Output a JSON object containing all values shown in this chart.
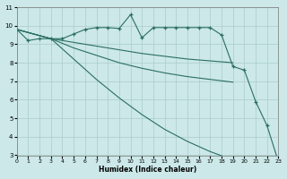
{
  "xlabel": "Humidex (Indice chaleur)",
  "xlim_min": 0,
  "xlim_max": 23,
  "ylim_min": 3,
  "ylim_max": 11,
  "yticks": [
    3,
    4,
    5,
    6,
    7,
    8,
    9,
    10,
    11
  ],
  "xticks": [
    0,
    1,
    2,
    3,
    4,
    5,
    6,
    7,
    8,
    9,
    10,
    11,
    12,
    13,
    14,
    15,
    16,
    17,
    18,
    19,
    20,
    21,
    22,
    23
  ],
  "bg_color": "#cce8e8",
  "grid_color": "#aacccc",
  "line_color": "#2a6e62",
  "series": [
    {
      "x": [
        0,
        1,
        2,
        3,
        4,
        5,
        6,
        7,
        8,
        9,
        10,
        11,
        12,
        13,
        14,
        15,
        16,
        17,
        18,
        19,
        20,
        21,
        22,
        23
      ],
      "y": [
        9.8,
        9.2,
        9.3,
        9.3,
        9.3,
        9.55,
        9.8,
        9.9,
        9.9,
        9.85,
        10.6,
        9.35,
        9.9,
        9.9,
        9.9,
        9.9,
        9.9,
        9.9,
        9.5,
        7.8,
        7.6,
        5.9,
        4.6,
        2.65
      ],
      "marker": true
    },
    {
      "x": [
        0,
        3,
        5,
        7,
        9,
        11,
        13,
        15,
        17,
        19
      ],
      "y": [
        9.8,
        9.3,
        9.1,
        8.9,
        8.7,
        8.5,
        8.35,
        8.2,
        8.1,
        8.0
      ],
      "marker": false
    },
    {
      "x": [
        0,
        3,
        5,
        7,
        9,
        11,
        13,
        15,
        17,
        19
      ],
      "y": [
        9.8,
        9.3,
        8.8,
        8.4,
        8.0,
        7.7,
        7.45,
        7.25,
        7.1,
        6.95
      ],
      "marker": false
    },
    {
      "x": [
        0,
        3,
        5,
        7,
        9,
        11,
        13,
        15,
        17,
        19,
        20
      ],
      "y": [
        9.8,
        9.3,
        8.2,
        7.1,
        6.1,
        5.2,
        4.4,
        3.75,
        3.2,
        2.75,
        2.6
      ],
      "marker": false
    }
  ]
}
